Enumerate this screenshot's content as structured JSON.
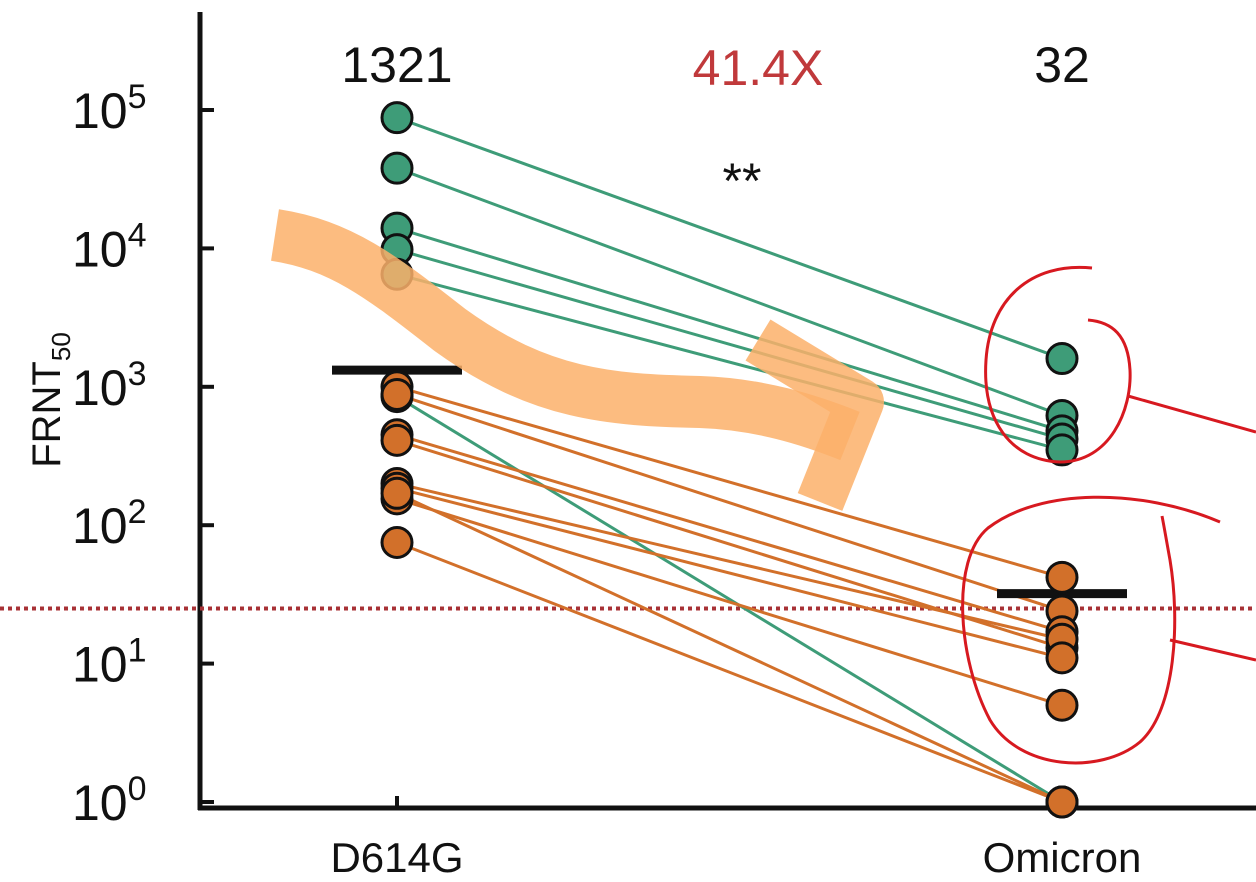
{
  "chart_data": {
    "type": "scatter",
    "ylabel_main": "FRNT",
    "ylabel_sub": "50",
    "y_scale": "log",
    "ylim": [
      1,
      400000
    ],
    "yticks": [
      {
        "exp": "0",
        "value": 1
      },
      {
        "exp": "1",
        "value": 10
      },
      {
        "exp": "2",
        "value": 100
      },
      {
        "exp": "3",
        "value": 1000
      },
      {
        "exp": "4",
        "value": 10000
      },
      {
        "exp": "5",
        "value": 100000
      }
    ],
    "ytick_base": "10",
    "categories": [
      "D614G",
      "Omicron"
    ],
    "geo_means": [
      {
        "label": "1321",
        "value": 1321
      },
      {
        "label": "32",
        "value": 32
      }
    ],
    "fold_change": "41.4X",
    "significance": "**",
    "detection_limit": 25,
    "colors": {
      "green": "#3e9c78",
      "orange": "#d2702a",
      "fold": "#c0393b",
      "limit": "#a83236",
      "highlight": "#fbb06a",
      "annotation": "#d71920",
      "axis": "#111111"
    },
    "pairs": [
      {
        "group": "green",
        "d614g": 88000,
        "omicron": 1600
      },
      {
        "group": "green",
        "d614g": 38000,
        "omicron": 620
      },
      {
        "group": "green",
        "d614g": 14000,
        "omicron": 480
      },
      {
        "group": "green",
        "d614g": 9800,
        "omicron": 420
      },
      {
        "group": "green",
        "d614g": 6500,
        "omicron": 350
      },
      {
        "group": "green",
        "d614g": 850,
        "omicron": 1
      },
      {
        "group": "orange",
        "d614g": 1000,
        "omicron": 42
      },
      {
        "group": "orange",
        "d614g": 880,
        "omicron": 24
      },
      {
        "group": "orange",
        "d614g": 450,
        "omicron": 17
      },
      {
        "group": "orange",
        "d614g": 410,
        "omicron": 13
      },
      {
        "group": "orange",
        "d614g": 200,
        "omicron": 15
      },
      {
        "group": "orange",
        "d614g": 185,
        "omicron": 11
      },
      {
        "group": "orange",
        "d614g": 155,
        "omicron": 5
      },
      {
        "group": "orange",
        "d614g": 170,
        "omicron": 1
      },
      {
        "group": "orange",
        "d614g": 75,
        "omicron": 1
      }
    ]
  }
}
